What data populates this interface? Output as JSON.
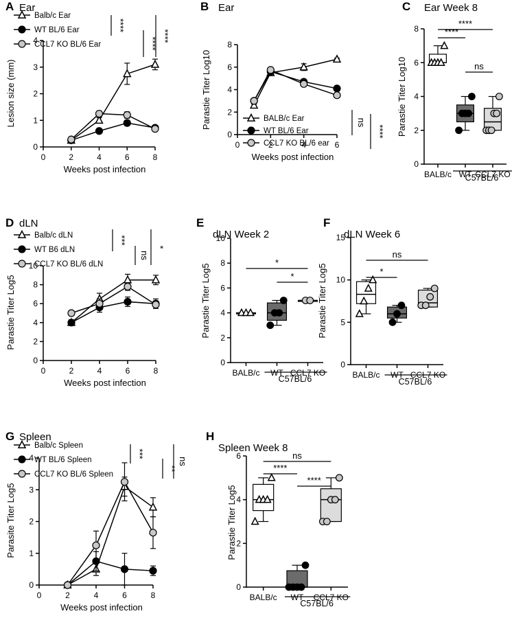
{
  "chart_data": [
    {
      "id": "A",
      "type": "line",
      "panel_label": "A",
      "title": "Ear",
      "xlabel": "Weeks post infection",
      "ylabel": "Lesion size (mm)",
      "xlim": [
        0,
        8
      ],
      "ylim": [
        0,
        4
      ],
      "xticks": [
        "0",
        "2",
        "4",
        "6",
        "8"
      ],
      "yticks": [
        "0",
        "1",
        "2",
        "3",
        "4"
      ],
      "series": [
        {
          "name": "Balb/c Ear",
          "marker": "tri",
          "x": [
            2,
            4,
            6,
            8
          ],
          "y": [
            0.25,
            1.0,
            2.75,
            3.1
          ],
          "err": [
            0.05,
            0.1,
            0.4,
            0.2
          ]
        },
        {
          "name": "WT BL/6 Ear",
          "marker": "black",
          "x": [
            2,
            4,
            6,
            8
          ],
          "y": [
            0.25,
            0.6,
            0.9,
            0.72
          ],
          "err": [
            0.05,
            0.05,
            0.1,
            0.05
          ]
        },
        {
          "name": "CCL7 KO BL/6 Ear",
          "marker": "grey",
          "x": [
            2,
            4,
            6,
            8
          ],
          "y": [
            0.28,
            1.25,
            1.2,
            0.68
          ],
          "err": [
            0.05,
            0.08,
            0.12,
            0.05
          ]
        }
      ],
      "significance": [
        "****",
        "****",
        "****"
      ]
    },
    {
      "id": "B",
      "type": "line",
      "panel_label": "B",
      "title": "Ear",
      "xlabel": "Weeks post infection",
      "ylabel": "Parastie Titer Log10",
      "xlim": [
        0,
        6
      ],
      "ylim": [
        0,
        8
      ],
      "xticks": [
        "0",
        "2",
        "4",
        "6"
      ],
      "yticks": [
        "0",
        "2",
        "4",
        "6",
        "8"
      ],
      "series": [
        {
          "name": "BALB/c Ear",
          "marker": "tri",
          "x": [
            1,
            2,
            4,
            6
          ],
          "y": [
            2.6,
            5.5,
            6.0,
            6.7
          ],
          "err": [
            0.1,
            0.2,
            0.3,
            0.1
          ]
        },
        {
          "name": "WT BL/6 Ear",
          "marker": "black",
          "x": [
            1,
            2,
            4,
            6
          ],
          "y": [
            3.0,
            5.6,
            4.7,
            4.1
          ],
          "err": [
            0.1,
            0.2,
            0.2,
            0.1
          ]
        },
        {
          "name": "CCL7 KO BL/6 ear",
          "marker": "grey",
          "x": [
            1,
            2,
            4,
            6
          ],
          "y": [
            3.0,
            5.75,
            4.5,
            3.5
          ],
          "err": [
            0.1,
            0.2,
            0.2,
            0.1
          ]
        }
      ],
      "significance": [
        "ns",
        "****"
      ]
    },
    {
      "id": "C",
      "type": "box",
      "panel_label": "C",
      "title": "Ear Week 8",
      "ylabel": "Parastie Titer Log10",
      "ylim": [
        0,
        8
      ],
      "yticks": [
        "0",
        "2",
        "4",
        "6",
        "8"
      ],
      "categories": [
        "BALB/c",
        "WT",
        "CCL7 KO"
      ],
      "group_label": "C57BL/6",
      "boxes": [
        {
          "q1": 6.0,
          "median": 6.0,
          "q3": 6.5,
          "min": 6.0,
          "max": 7.0,
          "points": [
            6,
            6,
            6,
            6,
            7
          ]
        },
        {
          "q1": 2.5,
          "median": 3.0,
          "q3": 3.5,
          "min": 2.0,
          "max": 4.0,
          "points": [
            2,
            3,
            3,
            3,
            4
          ]
        },
        {
          "q1": 2.0,
          "median": 2.5,
          "q3": 3.3,
          "min": 2.0,
          "max": 4.0,
          "points": [
            2,
            2,
            2,
            3,
            3,
            4
          ]
        }
      ],
      "brackets": [
        {
          "from": 0,
          "to": 1,
          "label": "****"
        },
        {
          "from": 0,
          "to": 2,
          "label": "****"
        },
        {
          "from": 1,
          "to": 2,
          "label": "ns"
        }
      ]
    },
    {
      "id": "D",
      "type": "line",
      "panel_label": "D",
      "title": "dLN",
      "xlabel": "Weeks post infection",
      "ylabel": "Parastie Titer Log5",
      "xlim": [
        0,
        8
      ],
      "ylim": [
        0,
        10
      ],
      "xticks": [
        "0",
        "2",
        "4",
        "6",
        "8"
      ],
      "yticks": [
        "0",
        "2",
        "4",
        "6",
        "8",
        "10"
      ],
      "series": [
        {
          "name": "Balb/c dLN",
          "marker": "tri",
          "x": [
            2,
            4,
            6,
            8
          ],
          "y": [
            4.0,
            6.5,
            8.5,
            8.5
          ],
          "err": [
            0.3,
            0.6,
            0.6,
            0.5
          ]
        },
        {
          "name": "WT B6 dLN",
          "marker": "black",
          "x": [
            2,
            4,
            6,
            8
          ],
          "y": [
            4.0,
            5.6,
            6.2,
            6.0
          ],
          "err": [
            0.3,
            0.5,
            0.5,
            0.5
          ]
        },
        {
          "name": "CCL7 KO BL/6 dLN",
          "marker": "grey",
          "x": [
            2,
            4,
            6,
            8
          ],
          "y": [
            5.0,
            6.0,
            7.8,
            5.9
          ],
          "err": [
            0.2,
            0.5,
            0.4,
            0.4
          ]
        }
      ],
      "significance": [
        "***",
        "ns",
        "*"
      ]
    },
    {
      "id": "E",
      "type": "box",
      "panel_label": "E",
      "title": "dLN Week 2",
      "ylabel": "Parastie Titer Log5",
      "ylim": [
        0,
        10
      ],
      "yticks": [
        "0",
        "2",
        "4",
        "6",
        "8",
        "10"
      ],
      "categories": [
        "BALB/c",
        "WT",
        "CCL7 KO"
      ],
      "group_label": "C57BL/6",
      "boxes": [
        {
          "q1": 4.0,
          "median": 4.0,
          "q3": 4.0,
          "min": 4.0,
          "max": 4.0,
          "points": [
            4,
            4,
            4
          ]
        },
        {
          "q1": 3.4,
          "median": 4.0,
          "q3": 4.8,
          "min": 3.0,
          "max": 5.0,
          "points": [
            3,
            4,
            4,
            5
          ]
        },
        {
          "q1": 5.0,
          "median": 5.0,
          "q3": 5.0,
          "min": 5.0,
          "max": 5.0,
          "points": [
            5,
            5
          ]
        }
      ],
      "brackets": [
        {
          "from": 0,
          "to": 2,
          "label": "*"
        },
        {
          "from": 1,
          "to": 2,
          "label": "*"
        }
      ]
    },
    {
      "id": "F",
      "type": "box",
      "panel_label": "F",
      "title": "dLN Week 6",
      "ylabel": "Parastie Titer Log5",
      "ylim": [
        0,
        15
      ],
      "yticks": [
        "0",
        "5",
        "10",
        "15"
      ],
      "categories": [
        "BALB/c",
        "WT",
        "CCL7 KO"
      ],
      "group_label": "C57BL/6",
      "boxes": [
        {
          "q1": 7.2,
          "median": 8.3,
          "q3": 9.8,
          "min": 6.0,
          "max": 10.0,
          "points": [
            6,
            7.5,
            9,
            10
          ]
        },
        {
          "q1": 5.5,
          "median": 6.0,
          "q3": 6.8,
          "min": 5.0,
          "max": 7.0,
          "points": [
            5,
            6,
            7
          ]
        },
        {
          "q1": 6.8,
          "median": 7.3,
          "q3": 8.8,
          "min": 6.8,
          "max": 9.0,
          "points": [
            7,
            7,
            8,
            9
          ]
        }
      ],
      "brackets": [
        {
          "from": 0,
          "to": 1,
          "label": "*"
        },
        {
          "from": 0,
          "to": 2,
          "label": "ns"
        }
      ]
    },
    {
      "id": "G",
      "type": "line",
      "panel_label": "G",
      "title": "Spleen",
      "xlabel": "Weeks post infection",
      "ylabel": "Parasite Titer Log5",
      "xlim": [
        0,
        8
      ],
      "ylim": [
        0,
        4
      ],
      "xticks": [
        "0",
        "2",
        "4",
        "6",
        "8"
      ],
      "yticks": [
        "0",
        "1",
        "2",
        "3",
        "4"
      ],
      "series": [
        {
          "name": "Balb/c Spleen",
          "marker": "tri",
          "x": [
            2,
            4,
            6,
            8
          ],
          "y": [
            0.0,
            0.5,
            3.1,
            2.45
          ],
          "err": [
            0.0,
            0.2,
            0.3,
            0.3
          ]
        },
        {
          "name": "WT BL/6 Spleen",
          "marker": "black",
          "x": [
            2,
            4,
            6,
            8
          ],
          "y": [
            0.0,
            0.75,
            0.5,
            0.45
          ],
          "err": [
            0.0,
            0.3,
            0.5,
            0.15
          ]
        },
        {
          "name": "CCL7 KO BL/6 Spleen",
          "marker": "grey",
          "x": [
            2,
            4,
            6,
            8
          ],
          "y": [
            0.0,
            1.25,
            3.25,
            1.65
          ],
          "err": [
            0.0,
            0.45,
            0.6,
            0.5
          ]
        }
      ],
      "significance": [
        "***",
        "**",
        "ns"
      ]
    },
    {
      "id": "H",
      "type": "box",
      "panel_label": "H",
      "title": "Spleen Week 8",
      "ylabel": "Parastie Titer Log5",
      "ylim": [
        0,
        6
      ],
      "yticks": [
        "0",
        "2",
        "4",
        "6"
      ],
      "categories": [
        "BALB/c",
        "WT",
        "CCL7 KO"
      ],
      "group_label": "C57BL/6",
      "boxes": [
        {
          "q1": 3.5,
          "median": 4.0,
          "q3": 4.7,
          "min": 3.0,
          "max": 5.0,
          "points": [
            3,
            4,
            4,
            4,
            5
          ]
        },
        {
          "q1": 0.0,
          "median": 0.0,
          "q3": 0.75,
          "min": 0.0,
          "max": 1.0,
          "points": [
            0,
            0,
            0,
            0,
            1
          ]
        },
        {
          "q1": 3.0,
          "median": 4.0,
          "q3": 4.5,
          "min": 3.0,
          "max": 5.0,
          "points": [
            3,
            3,
            4,
            4,
            5
          ]
        }
      ],
      "brackets": [
        {
          "from": 0,
          "to": 1,
          "label": "****"
        },
        {
          "from": 0,
          "to": 2,
          "label": "ns"
        },
        {
          "from": 1,
          "to": 2,
          "label": "****"
        }
      ]
    }
  ],
  "colors": {
    "axis": "#000000",
    "ko_fill": "#c8c8c8",
    "wt_fill": "#666666",
    "ko_box": "#dcdcdc",
    "wt_box": "#6b6b6b",
    "white": "#ffffff"
  }
}
